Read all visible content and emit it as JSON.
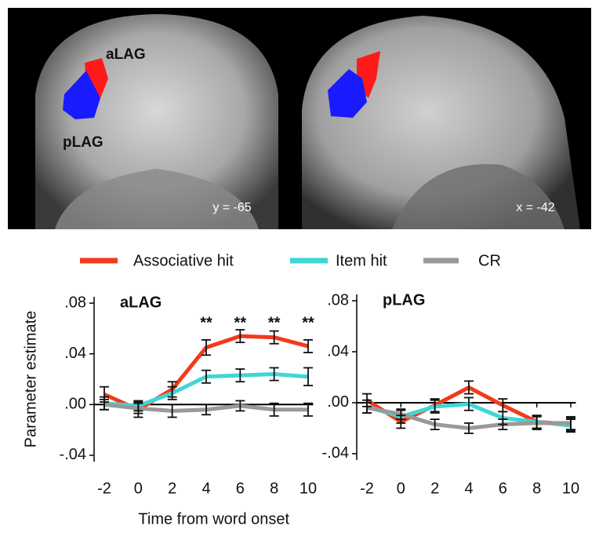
{
  "image_panel": {
    "images": [
      {
        "labels": [
          "aLAG",
          "pLAG"
        ],
        "coordinate": "y = -65"
      },
      {
        "coordinate": "x = -42"
      }
    ]
  },
  "chart_data": [
    {
      "type": "line",
      "title": "aLAG",
      "y_label": "Parameter estimate",
      "x_label": "Time from word onset",
      "x": [
        -2,
        0,
        2,
        4,
        6,
        8,
        10
      ],
      "series": [
        {
          "name": "Associative hit",
          "color": "#f23a1c",
          "values": [
            0.008,
            -0.004,
            0.012,
            0.045,
            0.054,
            0.053,
            0.046
          ],
          "errors": [
            0.006,
            0.006,
            0.006,
            0.006,
            0.005,
            0.005,
            0.005
          ]
        },
        {
          "name": "Item hit",
          "color": "#3fd6d6",
          "values": [
            0.001,
            -0.001,
            0.009,
            0.022,
            0.023,
            0.024,
            0.022
          ],
          "errors": [
            0.005,
            0.004,
            0.005,
            0.005,
            0.005,
            0.005,
            0.007
          ]
        },
        {
          "name": "CR",
          "color": "#999999",
          "values": [
            0.0,
            -0.003,
            -0.005,
            -0.004,
            -0.001,
            -0.004,
            -0.004
          ],
          "errors": [
            0.004,
            0.004,
            0.005,
            0.004,
            0.004,
            0.005,
            0.005
          ]
        }
      ],
      "annotations": [
        {
          "x": 4,
          "text": "**"
        },
        {
          "x": 6,
          "text": "**"
        },
        {
          "x": 8,
          "text": "**"
        },
        {
          "x": 10,
          "text": "**"
        }
      ],
      "xlim": [
        -2.6,
        10.3
      ],
      "xticks": [
        -2,
        0,
        2,
        4,
        6,
        8,
        10
      ],
      "ylim": [
        -0.045,
        0.085
      ],
      "yticks": [
        {
          "value": 0.08,
          "label": ".08"
        },
        {
          "value": 0.04,
          "label": ".04"
        },
        {
          "value": 0,
          "label": ".00"
        },
        {
          "value": -0.04,
          "label": "-.04"
        }
      ]
    },
    {
      "type": "line",
      "title": "pLAG",
      "x": [
        -2,
        0,
        2,
        4,
        6,
        8,
        10
      ],
      "series": [
        {
          "color": "#f23a1c",
          "values": [
            0.002,
            -0.015,
            -0.002,
            0.012,
            -0.002,
            -0.015,
            -0.017
          ],
          "errors": [
            0.005,
            0.005,
            0.005,
            0.005,
            0.005,
            0.005,
            0.005
          ]
        },
        {
          "color": "#3fd6d6",
          "values": [
            -0.003,
            -0.011,
            -0.003,
            -0.001,
            -0.012,
            -0.015,
            -0.018
          ],
          "errors": [
            0.005,
            0.005,
            0.005,
            0.005,
            0.005,
            0.005,
            0.005
          ]
        },
        {
          "color": "#999999",
          "values": [
            -0.004,
            -0.009,
            -0.017,
            -0.02,
            -0.017,
            -0.016,
            -0.016
          ],
          "errors": [
            0.004,
            0.004,
            0.004,
            0.004,
            0.004,
            0.005,
            0.005
          ]
        }
      ],
      "xlim": [
        -2.6,
        10.3
      ],
      "xticks": [
        -2,
        0,
        2,
        4,
        6,
        8,
        10
      ],
      "ylim": [
        -0.045,
        0.085
      ],
      "yticks": [
        {
          "value": 0.08,
          "label": ".08"
        },
        {
          "value": 0.04,
          "label": ".04"
        },
        {
          "value": 0,
          "label": ".00"
        },
        {
          "value": -0.04,
          "label": "-.04"
        }
      ]
    }
  ]
}
